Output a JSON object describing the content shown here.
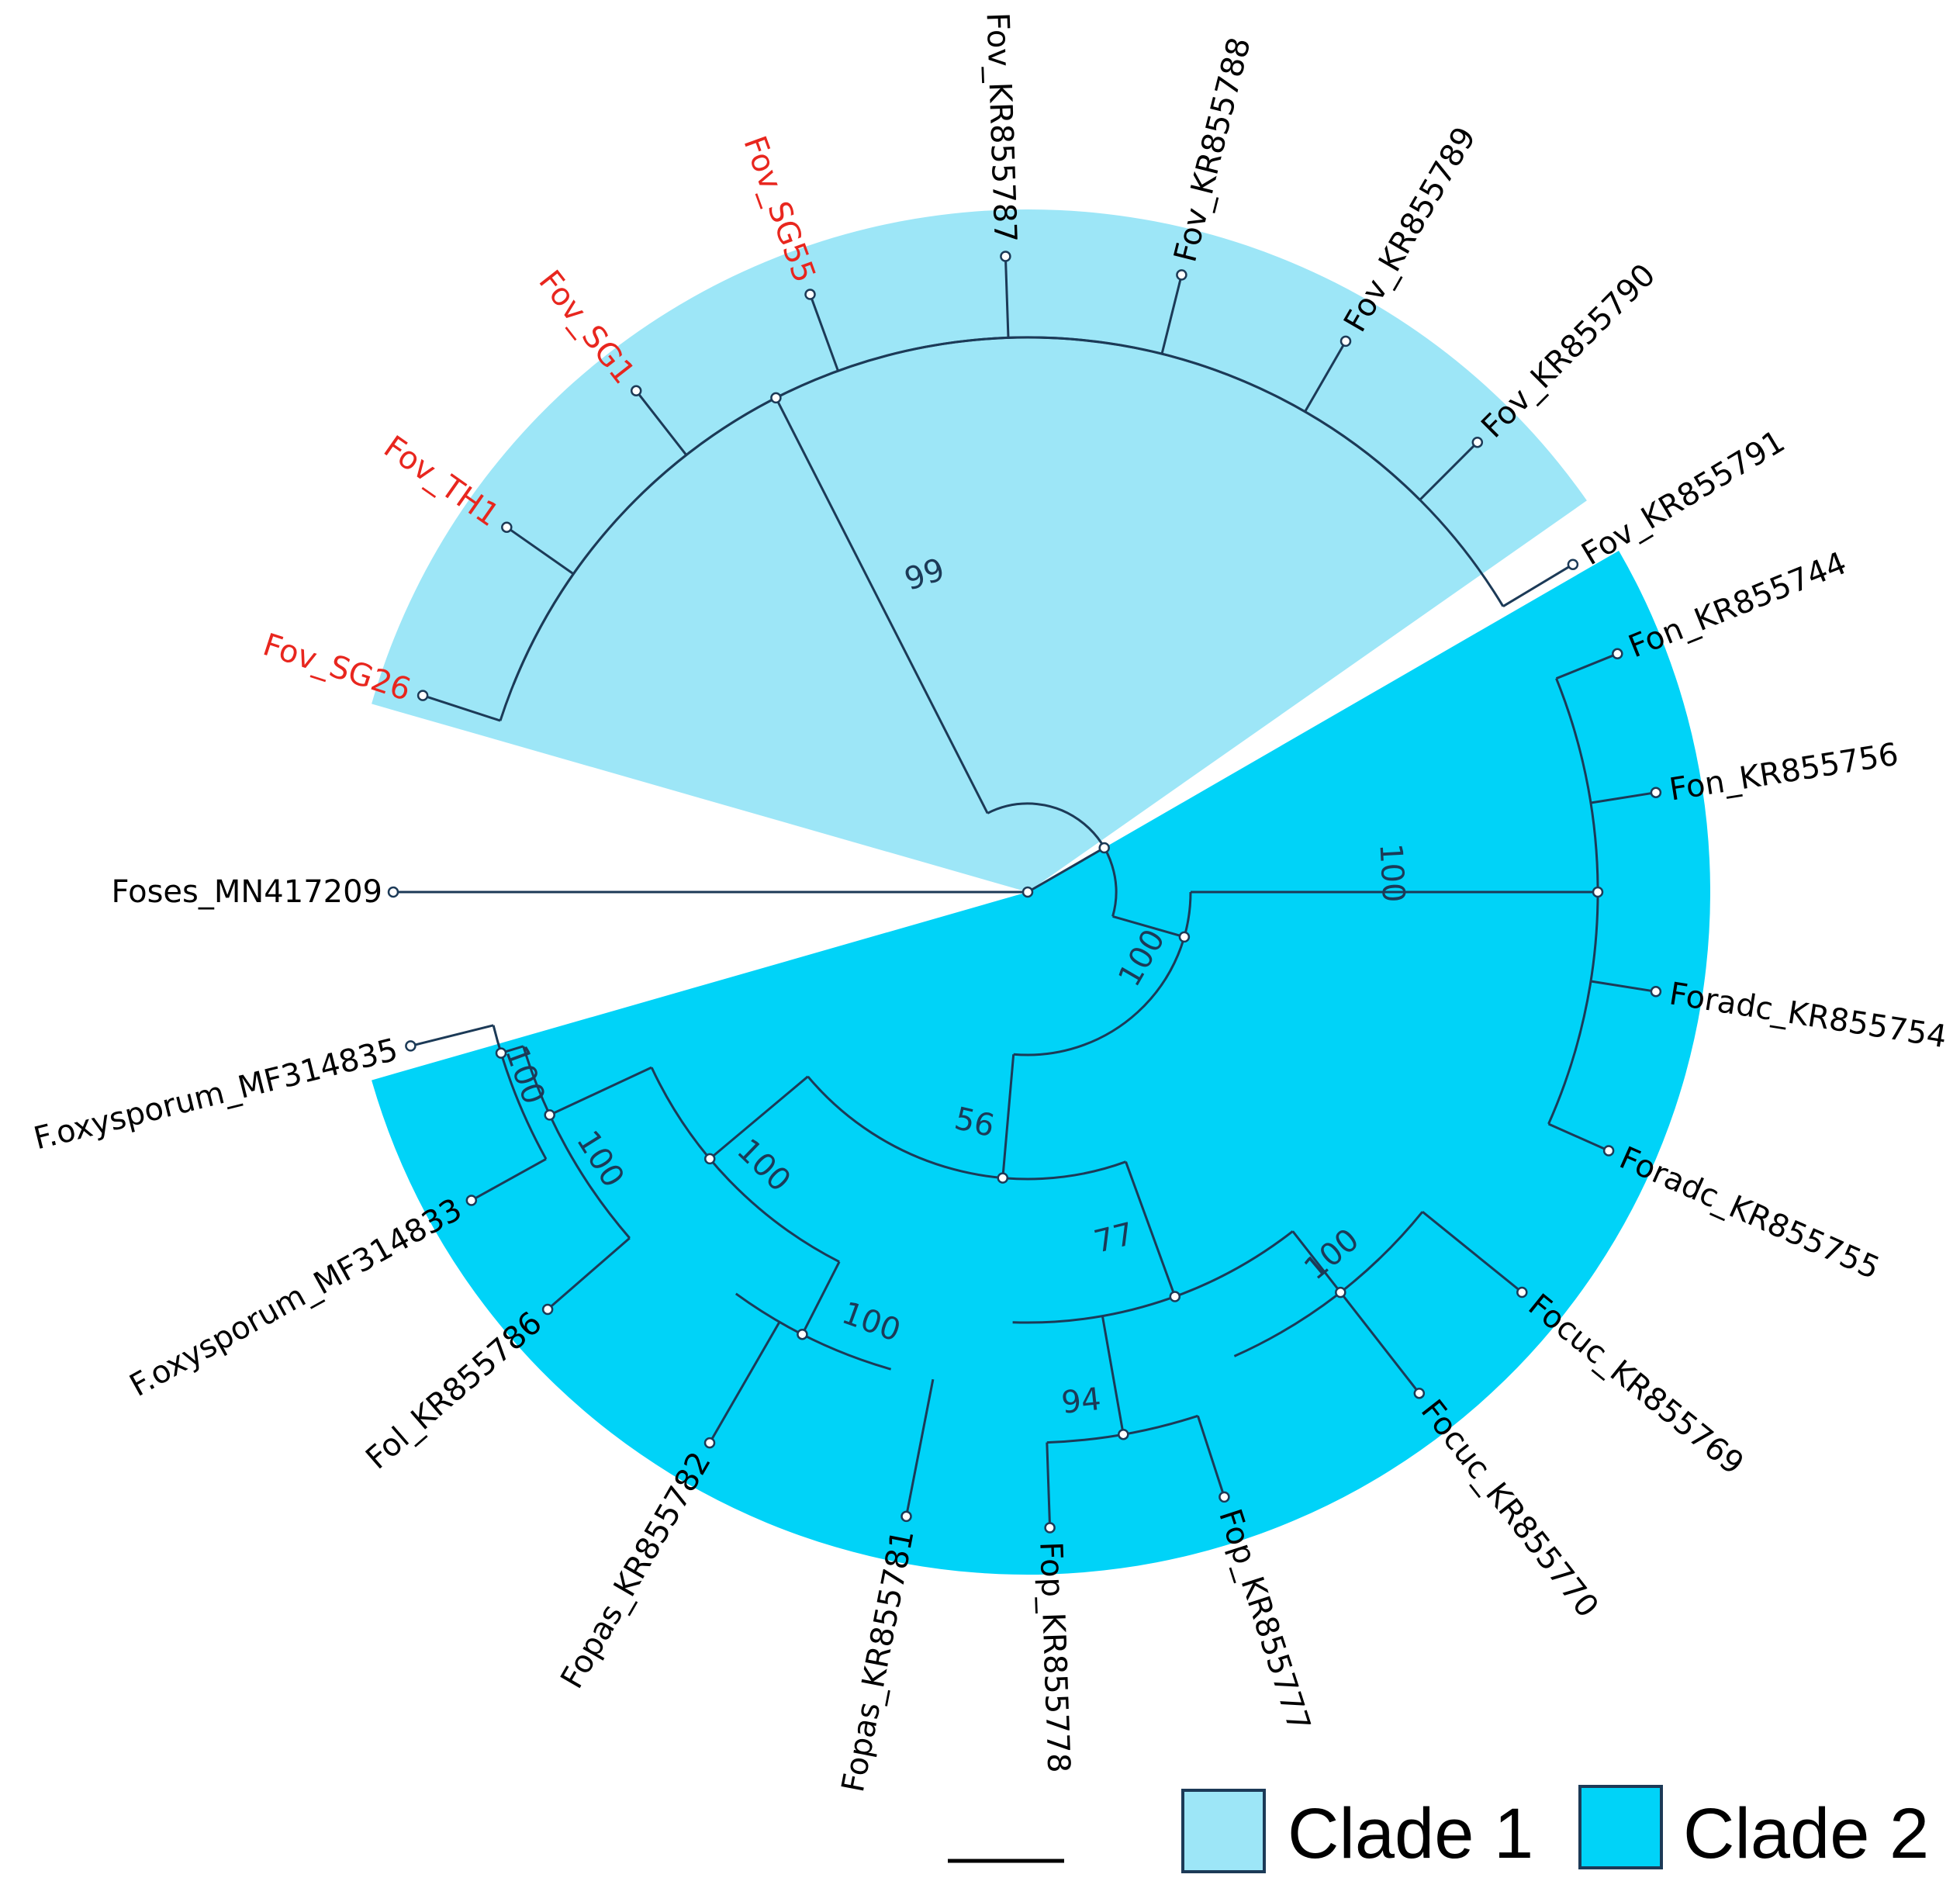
{
  "clades": [
    {
      "id": "clade1",
      "label": "Clade 1",
      "color": "#9de6f7"
    },
    {
      "id": "clade2",
      "label": "Clade 2",
      "color": "#00d3f8"
    }
  ],
  "tree": {
    "branch_color": "#1c3a57",
    "highlight_color": "#e8261e",
    "outgroup": "Foses_MN417209",
    "leaves_clade1": [
      {
        "name": "Fov_SG26",
        "highlighted": true
      },
      {
        "name": "Fov_TH1",
        "highlighted": true
      },
      {
        "name": "Fov_SG1",
        "highlighted": true
      },
      {
        "name": "Fov_SG55",
        "highlighted": true
      },
      {
        "name": "Fov_KR855787",
        "highlighted": false
      },
      {
        "name": "Fov_KR855788",
        "highlighted": false
      },
      {
        "name": "Fov_KR855789",
        "highlighted": false
      },
      {
        "name": "Fov_KR855790",
        "highlighted": false
      },
      {
        "name": "Fov_KR855791",
        "highlighted": false
      }
    ],
    "leaves_clade2": [
      {
        "name": "Fon_KR855744"
      },
      {
        "name": "Fon_KR855756"
      },
      {
        "name": "Foradc_KR855754"
      },
      {
        "name": "Foradc_KR855755"
      },
      {
        "name": "Focuc_KR855769"
      },
      {
        "name": "Focuc_KR855770"
      },
      {
        "name": "Fop_KR855777"
      },
      {
        "name": "Fop_KR855778"
      },
      {
        "name": "Fopas_KR855781"
      },
      {
        "name": "Fopas_KR855782"
      },
      {
        "name": "Fol_KR855786"
      },
      {
        "name": "F.oxysporum_MF314833"
      },
      {
        "name": "F.oxysporum_MF314835"
      }
    ],
    "bootstrap": {
      "clade1_root": "99",
      "clade2_root": "100",
      "fon_foradc": "100",
      "main_internal": "56",
      "fop_focuc": "77",
      "focuc": "100",
      "fop": "94",
      "foxy_fol_fopas": "100",
      "foxy_fol": "100",
      "foxy": "100",
      "fopas": "100"
    }
  }
}
